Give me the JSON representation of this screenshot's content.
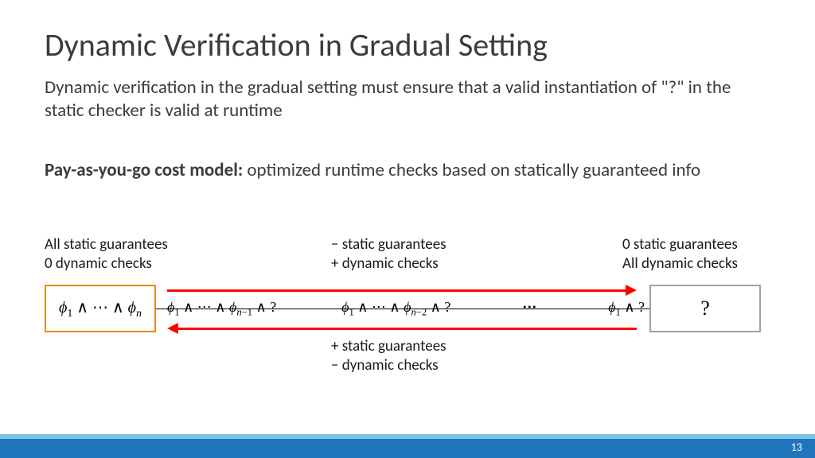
{
  "title": "Dynamic Verification in Gradual Setting",
  "intro": "Dynamic verification in the gradual setting must ensure that a valid instantiation of \"?\" in the static checker is valid at runtime",
  "cost_label": "Pay-as-you-go cost model:",
  "cost_rest": " optimized runtime checks based on statically guaranteed info",
  "left_l1": "All static guarantees",
  "left_l2": "0 dynamic checks",
  "mid_l1": "− static guarantees",
  "mid_l2": "+ dynamic checks",
  "right_l1": "0 static guarantees",
  "right_l2": "All dynamic checks",
  "below_l1": "+ static guarantees",
  "below_l2": "− dynamic checks",
  "page_no": "13",
  "box_right": "?",
  "colors": {
    "arrow": "#ff0000",
    "box_left_border": "#e38b1e",
    "box_right_border": "#a0a0a0",
    "footer_light": "#7dc3ea",
    "footer_dark": "#1f75bb",
    "text": "#3c3c3c"
  }
}
